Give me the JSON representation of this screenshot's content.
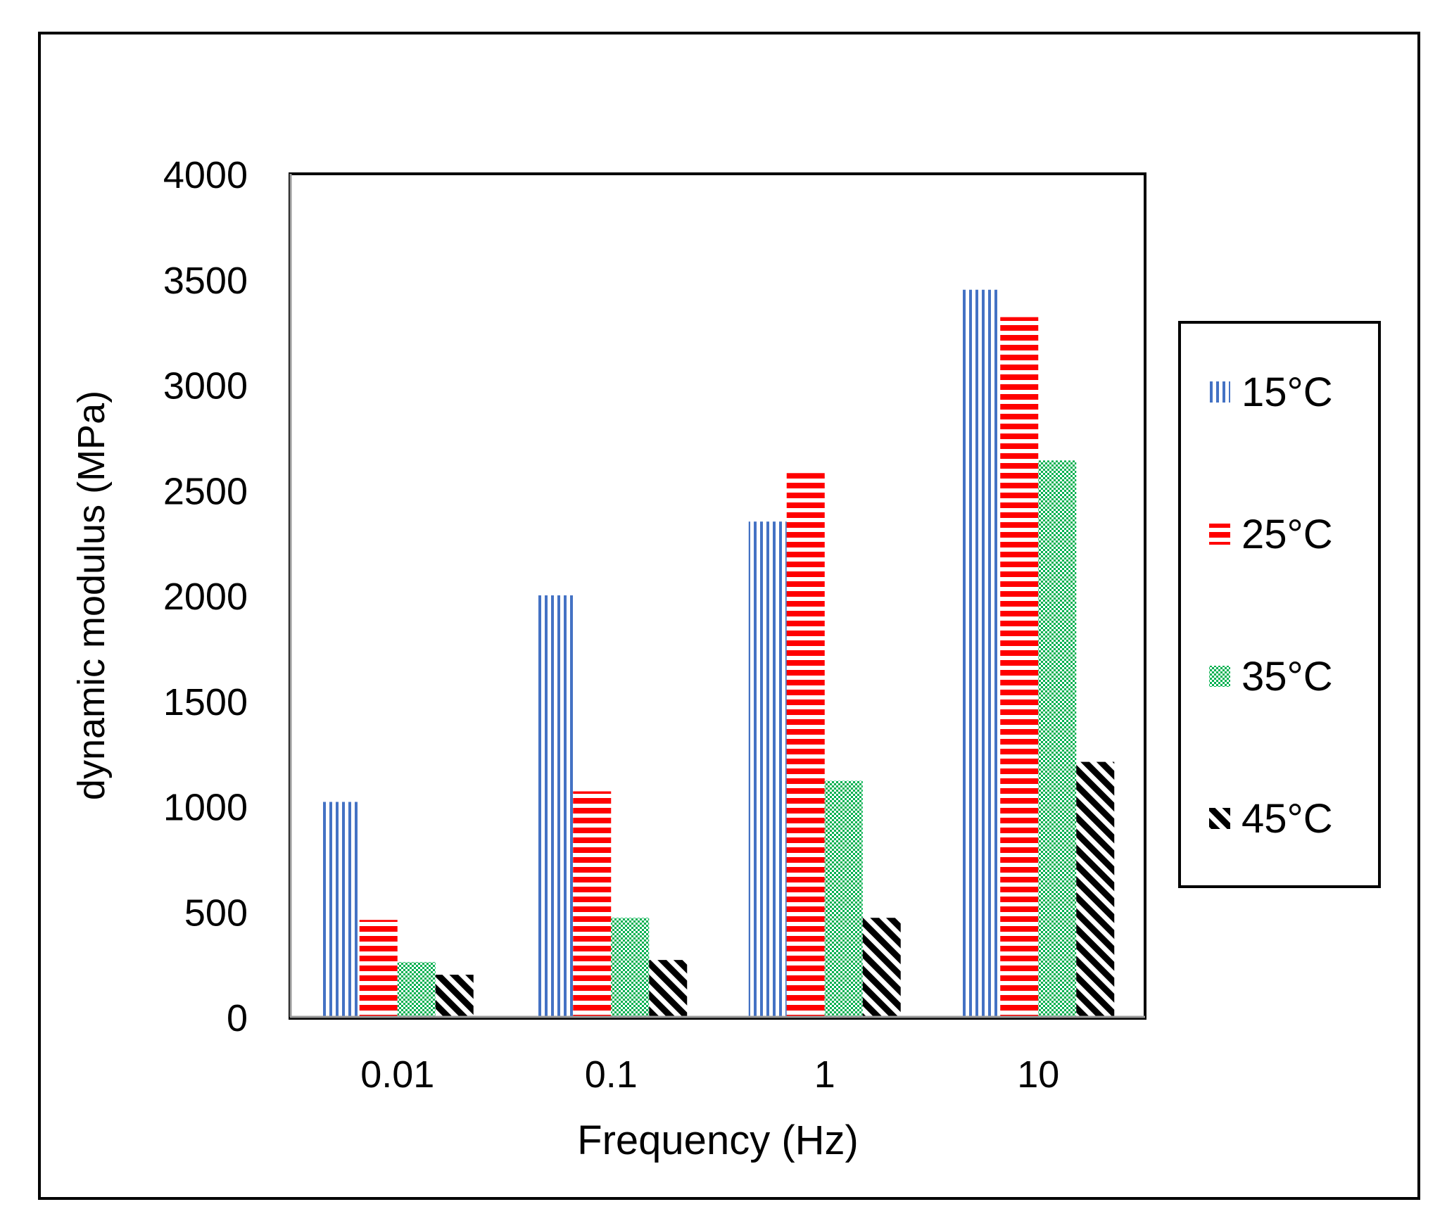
{
  "chart_data": {
    "type": "bar",
    "title": "",
    "xlabel": "Frequency (Hz)",
    "ylabel": "dynamic modulus  (MPa)",
    "categories": [
      "0.01",
      "0.1",
      "1",
      "10"
    ],
    "ylim": [
      0,
      4000
    ],
    "yticks": [
      "0",
      "500",
      "1000",
      "1500",
      "2000",
      "2500",
      "3000",
      "3500",
      "4000"
    ],
    "grid": false,
    "legend_position": "right",
    "series": [
      {
        "name": "15°C",
        "color": "#4472c4",
        "pattern": "vertical-lines",
        "values": [
          1020,
          2000,
          2350,
          3450
        ]
      },
      {
        "name": "25°C",
        "color": "#ff0000",
        "pattern": "horizontal-lines",
        "values": [
          460,
          1070,
          2580,
          3320
        ]
      },
      {
        "name": "35°C",
        "color": "#00b050",
        "pattern": "dots",
        "values": [
          260,
          470,
          1120,
          2640
        ]
      },
      {
        "name": "45°C",
        "color": "#000000",
        "pattern": "diagonal-lines",
        "values": [
          200,
          270,
          470,
          1210
        ]
      }
    ]
  }
}
